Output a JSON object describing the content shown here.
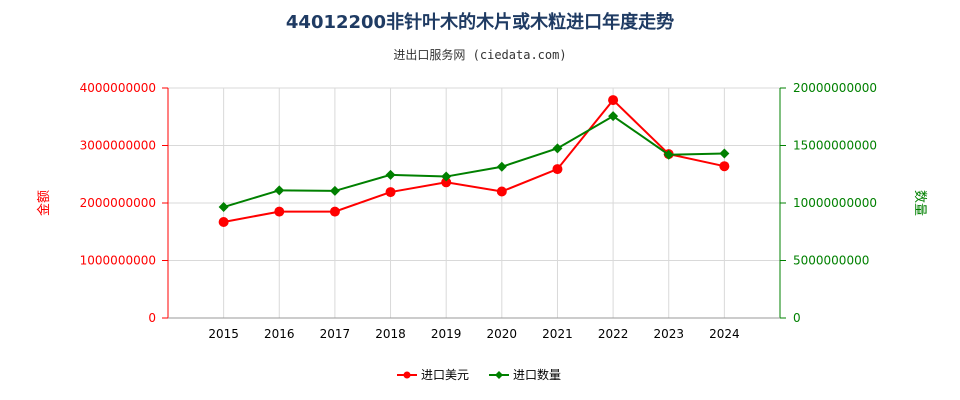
{
  "title": "44012200非针叶木的木片或木粒进口年度走势",
  "subtitle": "进出口服务网 (ciedata.com)",
  "colors": {
    "usd": "#ff0000",
    "quantity": "#008000",
    "grid": "#d9d9d9",
    "axis": "#999999"
  },
  "chart_data": {
    "type": "line",
    "x": [
      "2015",
      "2016",
      "2017",
      "2018",
      "2019",
      "2020",
      "2021",
      "2022",
      "2023",
      "2024"
    ],
    "y_left_label": "金额",
    "y_right_label": "数量",
    "ylim_left": [
      0,
      4000000000
    ],
    "ylim_right": [
      0,
      20000000000
    ],
    "y_left_ticks": [
      "0",
      "1000000000",
      "2000000000",
      "3000000000",
      "4000000000"
    ],
    "y_right_ticks": [
      "0",
      "5000000000",
      "10000000000",
      "15000000000",
      "20000000000"
    ],
    "grid": true,
    "legend_position": "bottom",
    "series": [
      {
        "name": "进口美元",
        "axis": "left",
        "color": "#ff0000",
        "marker": "circle",
        "values": [
          1670000000,
          1850000000,
          1850000000,
          2190000000,
          2360000000,
          2200000000,
          2590000000,
          3790000000,
          2850000000,
          2640000000
        ]
      },
      {
        "name": "进口数量",
        "axis": "right",
        "color": "#008000",
        "marker": "diamond",
        "values": [
          9650000000,
          11100000000,
          11050000000,
          12450000000,
          12300000000,
          13150000000,
          14750000000,
          17550000000,
          14200000000,
          14300000000
        ]
      }
    ]
  }
}
